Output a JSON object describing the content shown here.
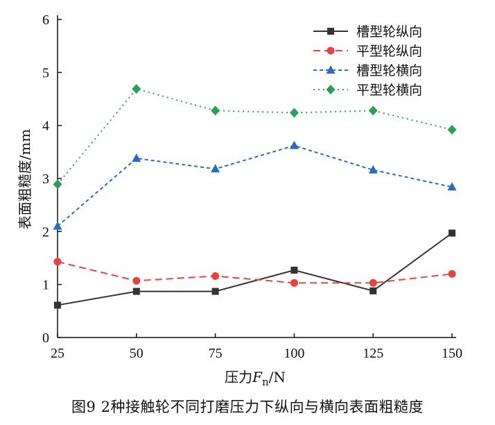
{
  "caption": "图9 2种接触轮不同打磨压力下纵向与横向表面粗糙度",
  "chart_data": {
    "type": "line",
    "x": [
      25,
      50,
      75,
      100,
      125,
      150
    ],
    "xlabel_prefix": "压力",
    "xlabel_var": "F",
    "xlabel_sub": "n",
    "xlabel_suffix": "/N",
    "ylabel": "表面粗糙度/mm",
    "xlim": [
      25,
      150
    ],
    "ylim": [
      0,
      6
    ],
    "yticks": [
      0,
      1,
      2,
      3,
      4,
      5,
      6
    ],
    "grid": false,
    "legend_position": "top-right",
    "series": [
      {
        "name": "槽型轮纵向",
        "values": [
          0.61,
          0.87,
          0.87,
          1.27,
          0.88,
          1.97
        ],
        "color": "#333333",
        "dash": "",
        "marker": "square"
      },
      {
        "name": "平型轮纵向",
        "values": [
          1.43,
          1.07,
          1.16,
          1.03,
          1.03,
          1.2
        ],
        "color": "#e8413e",
        "dash": "10,6",
        "marker": "circle"
      },
      {
        "name": "槽型轮横向",
        "values": [
          2.1,
          3.38,
          3.18,
          3.62,
          3.16,
          2.84
        ],
        "color": "#2a6bbf",
        "dash": "5,4",
        "marker": "triangle"
      },
      {
        "name": "平型轮横向",
        "values": [
          2.89,
          4.69,
          4.28,
          4.24,
          4.28,
          3.92
        ],
        "color": "#2e9e55",
        "dash": "2,5",
        "marker": "diamond"
      }
    ]
  }
}
